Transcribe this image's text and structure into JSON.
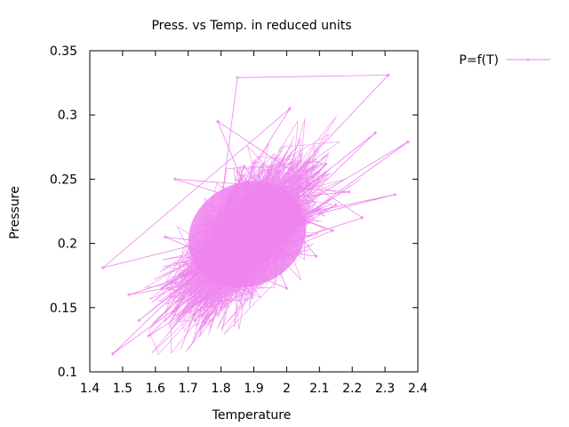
{
  "chart_data": {
    "type": "line",
    "title": "Press. vs Temp. in reduced units",
    "xlabel": "Temperature",
    "ylabel": "Pressure",
    "xlim": [
      1.4,
      2.4
    ],
    "ylim": [
      0.1,
      0.35
    ],
    "xticks": [
      "1.4",
      "1.5",
      "1.6",
      "1.7",
      "1.8",
      "1.9",
      "2",
      "2.1",
      "2.2",
      "2.3",
      "2.4"
    ],
    "yticks": [
      "0.1",
      "0.15",
      "0.2",
      "0.25",
      "0.3",
      "0.35"
    ],
    "legend_position": "top-right, outside plot",
    "grid": false,
    "series": [
      {
        "name": "P=f(T)",
        "color": "#ee82ee",
        "marker": "plus",
        "x": [
          1.93,
          1.78,
          1.85,
          2.31,
          1.88,
          1.47,
          2.37,
          1.62,
          2.04,
          1.74,
          2.27,
          1.55,
          1.96,
          1.86,
          2.15,
          1.69,
          2.01,
          1.44,
          2.33,
          1.81,
          1.98,
          1.58,
          2.12,
          1.9,
          1.72,
          2.06,
          1.66,
          2.19,
          1.84,
          1.95,
          1.52,
          2.23,
          1.79,
          2.0,
          1.63,
          2.09,
          1.87,
          1.76,
          2.14,
          1.93
        ],
        "y": [
          0.205,
          0.19,
          0.329,
          0.331,
          0.215,
          0.114,
          0.279,
          0.165,
          0.245,
          0.155,
          0.286,
          0.14,
          0.225,
          0.185,
          0.23,
          0.175,
          0.305,
          0.181,
          0.238,
          0.21,
          0.195,
          0.128,
          0.262,
          0.2,
          0.14,
          0.218,
          0.25,
          0.24,
          0.232,
          0.18,
          0.16,
          0.22,
          0.295,
          0.165,
          0.205,
          0.19,
          0.26,
          0.17,
          0.21,
          0.23
        ]
      }
    ]
  }
}
